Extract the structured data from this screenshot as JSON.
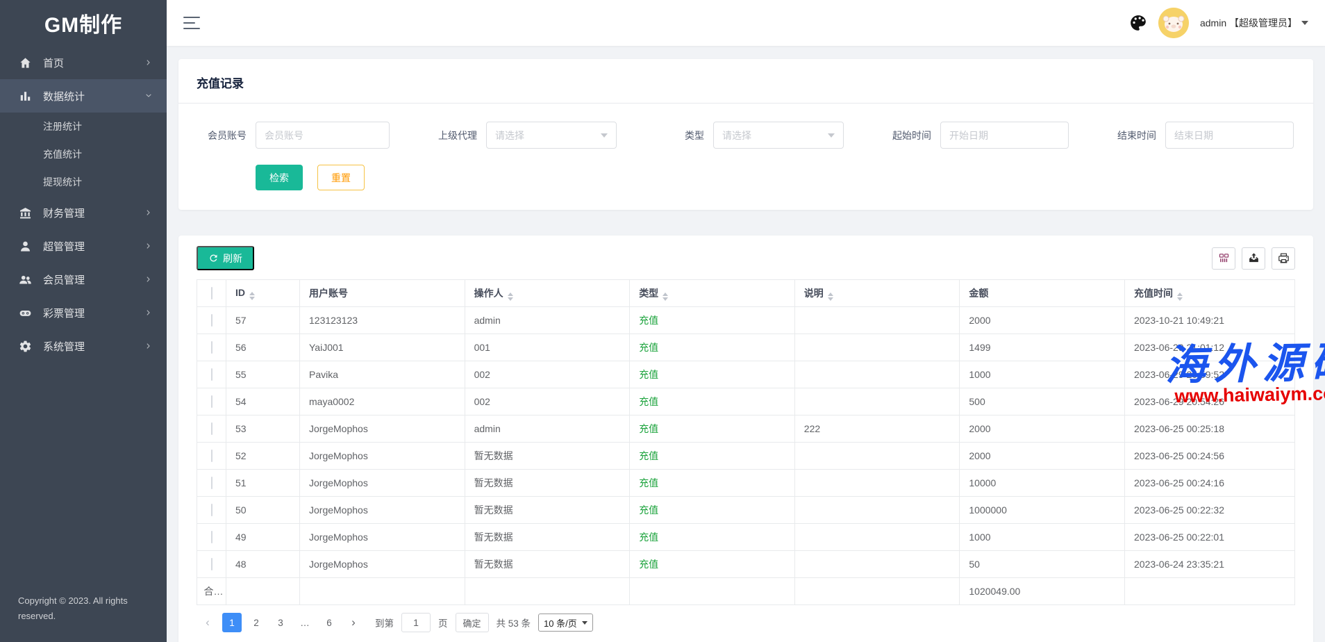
{
  "app": {
    "logo": "GM制作"
  },
  "topbar": {
    "user_label": "admin 【超级管理员】"
  },
  "sidebar": {
    "items": [
      {
        "label": "首页",
        "icon": "home-icon",
        "active": false,
        "children": []
      },
      {
        "label": "数据统计",
        "icon": "chart-icon",
        "active": true,
        "expanded": true,
        "children": [
          "注册统计",
          "充值统计",
          "提现统计"
        ]
      },
      {
        "label": "财务管理",
        "icon": "bank-icon",
        "active": false,
        "children": []
      },
      {
        "label": "超管管理",
        "icon": "user-icon",
        "active": false,
        "children": []
      },
      {
        "label": "会员管理",
        "icon": "users-icon",
        "active": false,
        "children": []
      },
      {
        "label": "彩票管理",
        "icon": "gamepad-icon",
        "active": false,
        "children": []
      },
      {
        "label": "系统管理",
        "icon": "gear-icon",
        "active": false,
        "children": []
      }
    ],
    "copyright": "Copyright © 2023. All rights reserved."
  },
  "page": {
    "title": "充值记录"
  },
  "filters": {
    "member_label": "会员账号",
    "member_placeholder": "会员账号",
    "agent_label": "上级代理",
    "agent_placeholder": "请选择",
    "type_label": "类型",
    "type_placeholder": "请选择",
    "start_label": "起始时间",
    "start_placeholder": "开始日期",
    "end_label": "结束时间",
    "end_placeholder": "结束日期",
    "search_button": "检索",
    "reset_button": "重置"
  },
  "table": {
    "refresh_button": "刷新",
    "headers": [
      {
        "label": "ID",
        "sortable": true
      },
      {
        "label": "用户账号",
        "sortable": false
      },
      {
        "label": "操作人",
        "sortable": true
      },
      {
        "label": "类型",
        "sortable": true
      },
      {
        "label": "说明",
        "sortable": true
      },
      {
        "label": "金额",
        "sortable": false
      },
      {
        "label": "充值时间",
        "sortable": true
      }
    ],
    "rows": [
      {
        "id": "57",
        "account": "123123123",
        "operator": "admin",
        "type": "充值",
        "note": "",
        "amount": "2000",
        "time": "2023-10-21 10:49:21"
      },
      {
        "id": "56",
        "account": "YaiJ001",
        "operator": "001",
        "type": "充值",
        "note": "",
        "amount": "1499",
        "time": "2023-06-29 21:01:12"
      },
      {
        "id": "55",
        "account": "Pavika",
        "operator": "002",
        "type": "充值",
        "note": "",
        "amount": "1000",
        "time": "2023-06-29 20:59:52"
      },
      {
        "id": "54",
        "account": "maya0002",
        "operator": "002",
        "type": "充值",
        "note": "",
        "amount": "500",
        "time": "2023-06-29 20:54:26"
      },
      {
        "id": "53",
        "account": "JorgeMophos",
        "operator": "admin",
        "type": "充值",
        "note": "222",
        "amount": "2000",
        "time": "2023-06-25 00:25:18"
      },
      {
        "id": "52",
        "account": "JorgeMophos",
        "operator": "暂无数据",
        "type": "充值",
        "note": "",
        "amount": "2000",
        "time": "2023-06-25 00:24:56"
      },
      {
        "id": "51",
        "account": "JorgeMophos",
        "operator": "暂无数据",
        "type": "充值",
        "note": "",
        "amount": "10000",
        "time": "2023-06-25 00:24:16"
      },
      {
        "id": "50",
        "account": "JorgeMophos",
        "operator": "暂无数据",
        "type": "充值",
        "note": "",
        "amount": "1000000",
        "time": "2023-06-25 00:22:32"
      },
      {
        "id": "49",
        "account": "JorgeMophos",
        "operator": "暂无数据",
        "type": "充值",
        "note": "",
        "amount": "1000",
        "time": "2023-06-25 00:22:01"
      },
      {
        "id": "48",
        "account": "JorgeMophos",
        "operator": "暂无数据",
        "type": "充值",
        "note": "",
        "amount": "50",
        "time": "2023-06-24 23:35:21"
      }
    ],
    "sum_label": "合…",
    "sum_amount": "1020049.00"
  },
  "pagination": {
    "prev": "‹",
    "next": "›",
    "pages": [
      "1",
      "2",
      "3",
      "…",
      "6"
    ],
    "active_page": "1",
    "goto_label": "到第",
    "goto_value": "1",
    "page_unit": "页",
    "confirm_button": "确定",
    "total_text": "共 53 条",
    "per_page_text": "10 条/页"
  },
  "watermark": {
    "line1": "海外源码",
    "line2": "www.haiwaiym.com",
    "line1_color": "#1b55ee",
    "line2_color": "#e60000"
  },
  "colors": {
    "teal": "#19b998",
    "type_green": "#19a23a",
    "active_page_blue": "#3e8ef7",
    "reset_orange": "#ff9900",
    "sidebar_bg": "#3d4653"
  }
}
